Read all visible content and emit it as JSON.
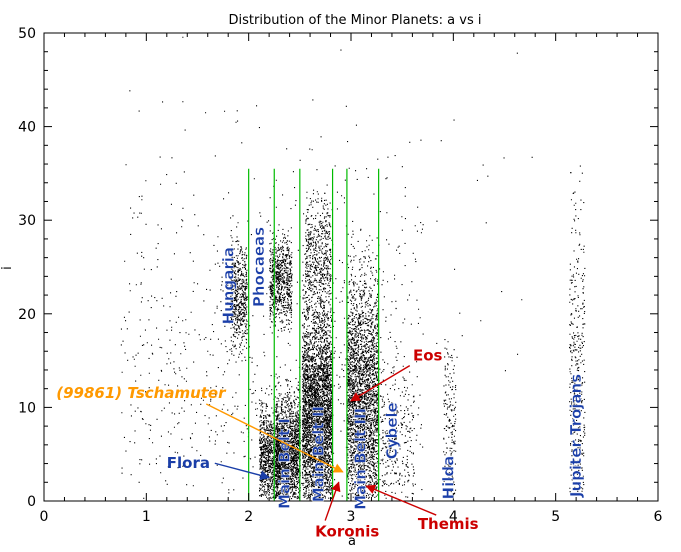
{
  "chart_data": {
    "type": "scatter",
    "title": "Distribution of the Minor Planets: a vs i",
    "xlabel": "a",
    "ylabel": "i",
    "xlim": [
      0,
      6
    ],
    "ylim": [
      0,
      50
    ],
    "x_ticks": [
      0,
      1,
      2,
      3,
      4,
      5,
      6
    ],
    "y_ticks": [
      0,
      10,
      20,
      30,
      40,
      50
    ],
    "grid": false,
    "point_color": "#000000",
    "boundary_color": "#00bb00",
    "boundary_lines": [
      {
        "a": 2.0,
        "i_max": 35.5
      },
      {
        "a": 2.25,
        "i_max": 35.5
      },
      {
        "a": 2.5,
        "i_max": 35.5
      },
      {
        "a": 2.82,
        "i_max": 35.5
      },
      {
        "a": 2.96,
        "i_max": 35.5
      },
      {
        "a": 3.27,
        "i_max": 35.5
      }
    ],
    "groups": [
      {
        "label": "Hungaria",
        "a": 1.85,
        "i": 23,
        "color": "#1a3ea8"
      },
      {
        "label": "Phocaeas",
        "a": 2.15,
        "i": 25,
        "color": "#1a3ea8"
      },
      {
        "label": "Main Belt I",
        "a": 2.4,
        "i": 4,
        "color": "#1a3ea8"
      },
      {
        "label": "Main Belt II",
        "a": 2.73,
        "i": 5,
        "color": "#1a3ea8"
      },
      {
        "label": "Main Belt III",
        "a": 3.14,
        "i": 4.5,
        "color": "#1a3ea8"
      },
      {
        "label": "Cybele",
        "a": 3.45,
        "i": 7.5,
        "color": "#1a3ea8"
      },
      {
        "label": "Hilda",
        "a": 4.0,
        "i": 2.5,
        "color": "#1a3ea8"
      },
      {
        "label": "Jupiter Trojans",
        "a": 5.25,
        "i": 7,
        "color": "#1a3ea8"
      }
    ],
    "callouts": [
      {
        "label": "Flora",
        "color": "#1a3ea8",
        "label_a": 1.2,
        "label_i": 3.5,
        "point_a": 2.2,
        "point_i": 2.5
      },
      {
        "label": "Eos",
        "color": "#cc0000",
        "label_a": 3.75,
        "label_i": 15,
        "point_a": 3.0,
        "point_i": 10.7
      },
      {
        "label": "(99861) Tschamuter",
        "color": "#ff9900",
        "label_a": 0.12,
        "label_i": 11,
        "point_a": 2.92,
        "point_i": 3.1
      },
      {
        "label": "Koronis",
        "color": "#cc0000",
        "label_a": 2.65,
        "label_i": -3.8,
        "point_a": 2.88,
        "point_i": 2.0
      },
      {
        "label": "Themis",
        "color": "#cc0000",
        "label_a": 3.95,
        "label_i": -3.0,
        "point_a": 3.15,
        "point_i": 1.6
      }
    ]
  }
}
